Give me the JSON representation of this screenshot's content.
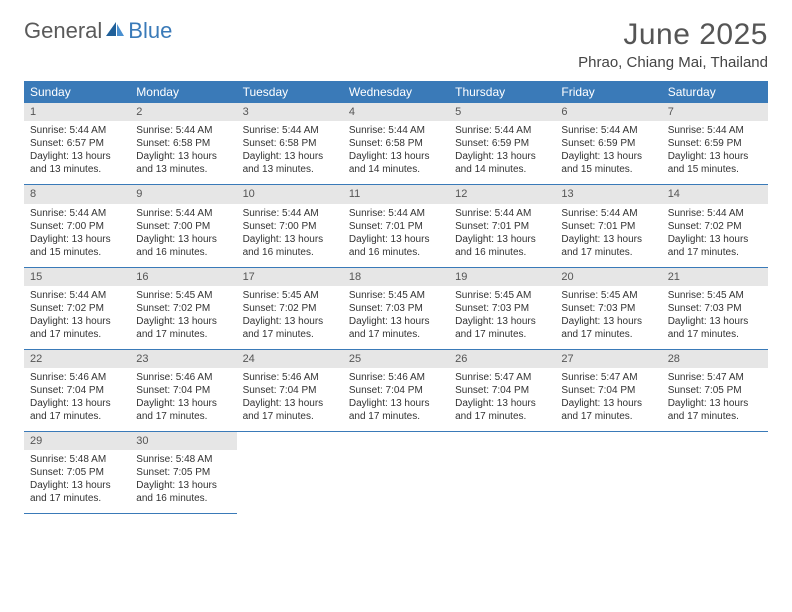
{
  "brand": {
    "general": "General",
    "blue": "Blue"
  },
  "title": "June 2025",
  "location": "Phrao, Chiang Mai, Thailand",
  "colors": {
    "header_bg": "#3a7ab8",
    "header_text": "#ffffff",
    "daynum_bg": "#e6e6e6",
    "daynum_text": "#555555",
    "border": "#3a7ab8",
    "logo_blue": "#3a7ab8",
    "logo_gray": "#5a5a5a"
  },
  "weekdays": [
    "Sunday",
    "Monday",
    "Tuesday",
    "Wednesday",
    "Thursday",
    "Friday",
    "Saturday"
  ],
  "labels": {
    "sunrise": "Sunrise:",
    "sunset": "Sunset:",
    "daylight": "Daylight:"
  },
  "days": [
    {
      "n": "1",
      "sunrise": "5:44 AM",
      "sunset": "6:57 PM",
      "daylight": "13 hours and 13 minutes."
    },
    {
      "n": "2",
      "sunrise": "5:44 AM",
      "sunset": "6:58 PM",
      "daylight": "13 hours and 13 minutes."
    },
    {
      "n": "3",
      "sunrise": "5:44 AM",
      "sunset": "6:58 PM",
      "daylight": "13 hours and 13 minutes."
    },
    {
      "n": "4",
      "sunrise": "5:44 AM",
      "sunset": "6:58 PM",
      "daylight": "13 hours and 14 minutes."
    },
    {
      "n": "5",
      "sunrise": "5:44 AM",
      "sunset": "6:59 PM",
      "daylight": "13 hours and 14 minutes."
    },
    {
      "n": "6",
      "sunrise": "5:44 AM",
      "sunset": "6:59 PM",
      "daylight": "13 hours and 15 minutes."
    },
    {
      "n": "7",
      "sunrise": "5:44 AM",
      "sunset": "6:59 PM",
      "daylight": "13 hours and 15 minutes."
    },
    {
      "n": "8",
      "sunrise": "5:44 AM",
      "sunset": "7:00 PM",
      "daylight": "13 hours and 15 minutes."
    },
    {
      "n": "9",
      "sunrise": "5:44 AM",
      "sunset": "7:00 PM",
      "daylight": "13 hours and 16 minutes."
    },
    {
      "n": "10",
      "sunrise": "5:44 AM",
      "sunset": "7:00 PM",
      "daylight": "13 hours and 16 minutes."
    },
    {
      "n": "11",
      "sunrise": "5:44 AM",
      "sunset": "7:01 PM",
      "daylight": "13 hours and 16 minutes."
    },
    {
      "n": "12",
      "sunrise": "5:44 AM",
      "sunset": "7:01 PM",
      "daylight": "13 hours and 16 minutes."
    },
    {
      "n": "13",
      "sunrise": "5:44 AM",
      "sunset": "7:01 PM",
      "daylight": "13 hours and 17 minutes."
    },
    {
      "n": "14",
      "sunrise": "5:44 AM",
      "sunset": "7:02 PM",
      "daylight": "13 hours and 17 minutes."
    },
    {
      "n": "15",
      "sunrise": "5:44 AM",
      "sunset": "7:02 PM",
      "daylight": "13 hours and 17 minutes."
    },
    {
      "n": "16",
      "sunrise": "5:45 AM",
      "sunset": "7:02 PM",
      "daylight": "13 hours and 17 minutes."
    },
    {
      "n": "17",
      "sunrise": "5:45 AM",
      "sunset": "7:02 PM",
      "daylight": "13 hours and 17 minutes."
    },
    {
      "n": "18",
      "sunrise": "5:45 AM",
      "sunset": "7:03 PM",
      "daylight": "13 hours and 17 minutes."
    },
    {
      "n": "19",
      "sunrise": "5:45 AM",
      "sunset": "7:03 PM",
      "daylight": "13 hours and 17 minutes."
    },
    {
      "n": "20",
      "sunrise": "5:45 AM",
      "sunset": "7:03 PM",
      "daylight": "13 hours and 17 minutes."
    },
    {
      "n": "21",
      "sunrise": "5:45 AM",
      "sunset": "7:03 PM",
      "daylight": "13 hours and 17 minutes."
    },
    {
      "n": "22",
      "sunrise": "5:46 AM",
      "sunset": "7:04 PM",
      "daylight": "13 hours and 17 minutes."
    },
    {
      "n": "23",
      "sunrise": "5:46 AM",
      "sunset": "7:04 PM",
      "daylight": "13 hours and 17 minutes."
    },
    {
      "n": "24",
      "sunrise": "5:46 AM",
      "sunset": "7:04 PM",
      "daylight": "13 hours and 17 minutes."
    },
    {
      "n": "25",
      "sunrise": "5:46 AM",
      "sunset": "7:04 PM",
      "daylight": "13 hours and 17 minutes."
    },
    {
      "n": "26",
      "sunrise": "5:47 AM",
      "sunset": "7:04 PM",
      "daylight": "13 hours and 17 minutes."
    },
    {
      "n": "27",
      "sunrise": "5:47 AM",
      "sunset": "7:04 PM",
      "daylight": "13 hours and 17 minutes."
    },
    {
      "n": "28",
      "sunrise": "5:47 AM",
      "sunset": "7:05 PM",
      "daylight": "13 hours and 17 minutes."
    },
    {
      "n": "29",
      "sunrise": "5:48 AM",
      "sunset": "7:05 PM",
      "daylight": "13 hours and 17 minutes."
    },
    {
      "n": "30",
      "sunrise": "5:48 AM",
      "sunset": "7:05 PM",
      "daylight": "13 hours and 16 minutes."
    }
  ]
}
